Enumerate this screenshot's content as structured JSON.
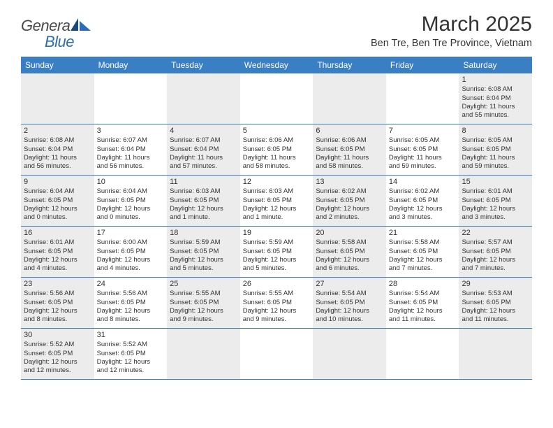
{
  "logo": {
    "part1": "Genera",
    "part2": "Blue"
  },
  "title": "March 2025",
  "location": "Ben Tre, Ben Tre Province, Vietnam",
  "colors": {
    "header_bg": "#3a7fc4",
    "header_text": "#ffffff",
    "shaded_bg": "#ececec",
    "border": "#3a7fc4",
    "text": "#333333",
    "logo_gray": "#4a4a4a",
    "logo_blue": "#2a6db5"
  },
  "day_headers": [
    "Sunday",
    "Monday",
    "Tuesday",
    "Wednesday",
    "Thursday",
    "Friday",
    "Saturday"
  ],
  "weeks": [
    [
      {
        "shaded": true
      },
      {
        "shaded": false
      },
      {
        "shaded": true
      },
      {
        "shaded": false
      },
      {
        "shaded": true
      },
      {
        "shaded": false
      },
      {
        "num": "1",
        "shaded": true,
        "sunrise": "Sunrise: 6:08 AM",
        "sunset": "Sunset: 6:04 PM",
        "daylight1": "Daylight: 11 hours",
        "daylight2": "and 55 minutes."
      }
    ],
    [
      {
        "num": "2",
        "shaded": true,
        "sunrise": "Sunrise: 6:08 AM",
        "sunset": "Sunset: 6:04 PM",
        "daylight1": "Daylight: 11 hours",
        "daylight2": "and 56 minutes."
      },
      {
        "num": "3",
        "shaded": false,
        "sunrise": "Sunrise: 6:07 AM",
        "sunset": "Sunset: 6:04 PM",
        "daylight1": "Daylight: 11 hours",
        "daylight2": "and 56 minutes."
      },
      {
        "num": "4",
        "shaded": true,
        "sunrise": "Sunrise: 6:07 AM",
        "sunset": "Sunset: 6:04 PM",
        "daylight1": "Daylight: 11 hours",
        "daylight2": "and 57 minutes."
      },
      {
        "num": "5",
        "shaded": false,
        "sunrise": "Sunrise: 6:06 AM",
        "sunset": "Sunset: 6:05 PM",
        "daylight1": "Daylight: 11 hours",
        "daylight2": "and 58 minutes."
      },
      {
        "num": "6",
        "shaded": true,
        "sunrise": "Sunrise: 6:06 AM",
        "sunset": "Sunset: 6:05 PM",
        "daylight1": "Daylight: 11 hours",
        "daylight2": "and 58 minutes."
      },
      {
        "num": "7",
        "shaded": false,
        "sunrise": "Sunrise: 6:05 AM",
        "sunset": "Sunset: 6:05 PM",
        "daylight1": "Daylight: 11 hours",
        "daylight2": "and 59 minutes."
      },
      {
        "num": "8",
        "shaded": true,
        "sunrise": "Sunrise: 6:05 AM",
        "sunset": "Sunset: 6:05 PM",
        "daylight1": "Daylight: 11 hours",
        "daylight2": "and 59 minutes."
      }
    ],
    [
      {
        "num": "9",
        "shaded": true,
        "sunrise": "Sunrise: 6:04 AM",
        "sunset": "Sunset: 6:05 PM",
        "daylight1": "Daylight: 12 hours",
        "daylight2": "and 0 minutes."
      },
      {
        "num": "10",
        "shaded": false,
        "sunrise": "Sunrise: 6:04 AM",
        "sunset": "Sunset: 6:05 PM",
        "daylight1": "Daylight: 12 hours",
        "daylight2": "and 0 minutes."
      },
      {
        "num": "11",
        "shaded": true,
        "sunrise": "Sunrise: 6:03 AM",
        "sunset": "Sunset: 6:05 PM",
        "daylight1": "Daylight: 12 hours",
        "daylight2": "and 1 minute."
      },
      {
        "num": "12",
        "shaded": false,
        "sunrise": "Sunrise: 6:03 AM",
        "sunset": "Sunset: 6:05 PM",
        "daylight1": "Daylight: 12 hours",
        "daylight2": "and 1 minute."
      },
      {
        "num": "13",
        "shaded": true,
        "sunrise": "Sunrise: 6:02 AM",
        "sunset": "Sunset: 6:05 PM",
        "daylight1": "Daylight: 12 hours",
        "daylight2": "and 2 minutes."
      },
      {
        "num": "14",
        "shaded": false,
        "sunrise": "Sunrise: 6:02 AM",
        "sunset": "Sunset: 6:05 PM",
        "daylight1": "Daylight: 12 hours",
        "daylight2": "and 3 minutes."
      },
      {
        "num": "15",
        "shaded": true,
        "sunrise": "Sunrise: 6:01 AM",
        "sunset": "Sunset: 6:05 PM",
        "daylight1": "Daylight: 12 hours",
        "daylight2": "and 3 minutes."
      }
    ],
    [
      {
        "num": "16",
        "shaded": true,
        "sunrise": "Sunrise: 6:01 AM",
        "sunset": "Sunset: 6:05 PM",
        "daylight1": "Daylight: 12 hours",
        "daylight2": "and 4 minutes."
      },
      {
        "num": "17",
        "shaded": false,
        "sunrise": "Sunrise: 6:00 AM",
        "sunset": "Sunset: 6:05 PM",
        "daylight1": "Daylight: 12 hours",
        "daylight2": "and 4 minutes."
      },
      {
        "num": "18",
        "shaded": true,
        "sunrise": "Sunrise: 5:59 AM",
        "sunset": "Sunset: 6:05 PM",
        "daylight1": "Daylight: 12 hours",
        "daylight2": "and 5 minutes."
      },
      {
        "num": "19",
        "shaded": false,
        "sunrise": "Sunrise: 5:59 AM",
        "sunset": "Sunset: 6:05 PM",
        "daylight1": "Daylight: 12 hours",
        "daylight2": "and 5 minutes."
      },
      {
        "num": "20",
        "shaded": true,
        "sunrise": "Sunrise: 5:58 AM",
        "sunset": "Sunset: 6:05 PM",
        "daylight1": "Daylight: 12 hours",
        "daylight2": "and 6 minutes."
      },
      {
        "num": "21",
        "shaded": false,
        "sunrise": "Sunrise: 5:58 AM",
        "sunset": "Sunset: 6:05 PM",
        "daylight1": "Daylight: 12 hours",
        "daylight2": "and 7 minutes."
      },
      {
        "num": "22",
        "shaded": true,
        "sunrise": "Sunrise: 5:57 AM",
        "sunset": "Sunset: 6:05 PM",
        "daylight1": "Daylight: 12 hours",
        "daylight2": "and 7 minutes."
      }
    ],
    [
      {
        "num": "23",
        "shaded": true,
        "sunrise": "Sunrise: 5:56 AM",
        "sunset": "Sunset: 6:05 PM",
        "daylight1": "Daylight: 12 hours",
        "daylight2": "and 8 minutes."
      },
      {
        "num": "24",
        "shaded": false,
        "sunrise": "Sunrise: 5:56 AM",
        "sunset": "Sunset: 6:05 PM",
        "daylight1": "Daylight: 12 hours",
        "daylight2": "and 8 minutes."
      },
      {
        "num": "25",
        "shaded": true,
        "sunrise": "Sunrise: 5:55 AM",
        "sunset": "Sunset: 6:05 PM",
        "daylight1": "Daylight: 12 hours",
        "daylight2": "and 9 minutes."
      },
      {
        "num": "26",
        "shaded": false,
        "sunrise": "Sunrise: 5:55 AM",
        "sunset": "Sunset: 6:05 PM",
        "daylight1": "Daylight: 12 hours",
        "daylight2": "and 9 minutes."
      },
      {
        "num": "27",
        "shaded": true,
        "sunrise": "Sunrise: 5:54 AM",
        "sunset": "Sunset: 6:05 PM",
        "daylight1": "Daylight: 12 hours",
        "daylight2": "and 10 minutes."
      },
      {
        "num": "28",
        "shaded": false,
        "sunrise": "Sunrise: 5:54 AM",
        "sunset": "Sunset: 6:05 PM",
        "daylight1": "Daylight: 12 hours",
        "daylight2": "and 11 minutes."
      },
      {
        "num": "29",
        "shaded": true,
        "sunrise": "Sunrise: 5:53 AM",
        "sunset": "Sunset: 6:05 PM",
        "daylight1": "Daylight: 12 hours",
        "daylight2": "and 11 minutes."
      }
    ],
    [
      {
        "num": "30",
        "shaded": true,
        "sunrise": "Sunrise: 5:52 AM",
        "sunset": "Sunset: 6:05 PM",
        "daylight1": "Daylight: 12 hours",
        "daylight2": "and 12 minutes."
      },
      {
        "num": "31",
        "shaded": false,
        "sunrise": "Sunrise: 5:52 AM",
        "sunset": "Sunset: 6:05 PM",
        "daylight1": "Daylight: 12 hours",
        "daylight2": "and 12 minutes."
      },
      {
        "shaded": true
      },
      {
        "shaded": false
      },
      {
        "shaded": true
      },
      {
        "shaded": false
      },
      {
        "shaded": true
      }
    ]
  ]
}
